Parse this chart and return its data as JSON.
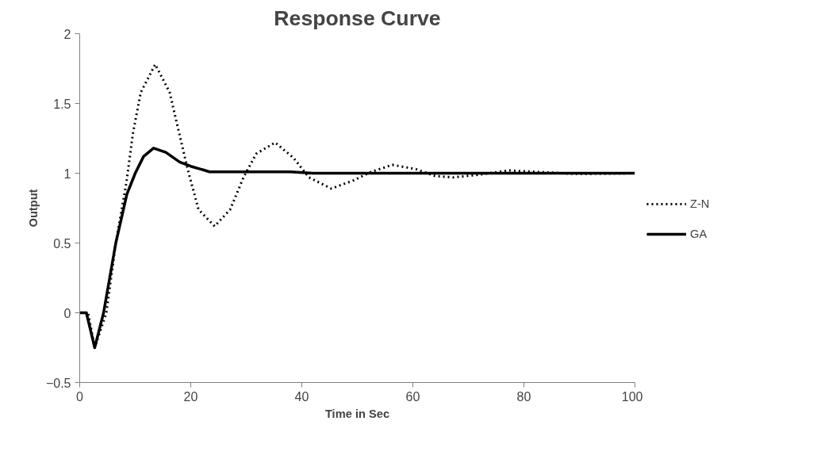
{
  "chart_data": {
    "type": "line",
    "title": "Response Curve",
    "xlabel": "Time in Sec",
    "ylabel": "Output",
    "xlim": [
      0,
      100
    ],
    "xticks": [
      0,
      20,
      40,
      60,
      80,
      100
    ],
    "ylim": [
      -0.5,
      2
    ],
    "yticks": [
      -0.5,
      0,
      0.5,
      1,
      1.5,
      2
    ],
    "grid": false,
    "legend": "right",
    "marker": "none",
    "series": [
      {
        "name": "Z-N",
        "color": "#000000",
        "line_style": "dotted",
        "x": [
          0,
          1.5,
          2.7,
          4.8,
          6.5,
          8.4,
          9.6,
          11.0,
          13.6,
          16.2,
          17.6,
          19.5,
          21.4,
          24.3,
          27.1,
          29.5,
          31.8,
          35.2,
          38.5,
          41.3,
          45.3,
          49.4,
          52.5,
          56.3,
          60.5,
          64.0,
          67.4,
          72.0,
          77.3,
          82.0,
          89.2,
          100
        ],
        "values": [
          0,
          0,
          -0.25,
          0,
          0.5,
          0.93,
          1.29,
          1.58,
          1.78,
          1.58,
          1.34,
          1.02,
          0.74,
          0.62,
          0.74,
          0.97,
          1.14,
          1.22,
          1.11,
          0.97,
          0.89,
          0.95,
          1.01,
          1.06,
          1.03,
          0.98,
          0.97,
          0.99,
          1.02,
          1.01,
          0.995,
          1.0
        ]
      },
      {
        "name": "GA",
        "color": "#000000",
        "line_style": "solid",
        "x": [
          0,
          1.2,
          2.7,
          4.3,
          6.5,
          8.5,
          10.0,
          11.5,
          13.3,
          15.5,
          18.0,
          20.0,
          23.4,
          30.0,
          38.0,
          42.0,
          100
        ],
        "values": [
          0,
          0,
          -0.25,
          0,
          0.5,
          0.85,
          1.0,
          1.12,
          1.18,
          1.15,
          1.08,
          1.05,
          1.01,
          1.01,
          1.01,
          1.0,
          1.0
        ]
      }
    ]
  }
}
